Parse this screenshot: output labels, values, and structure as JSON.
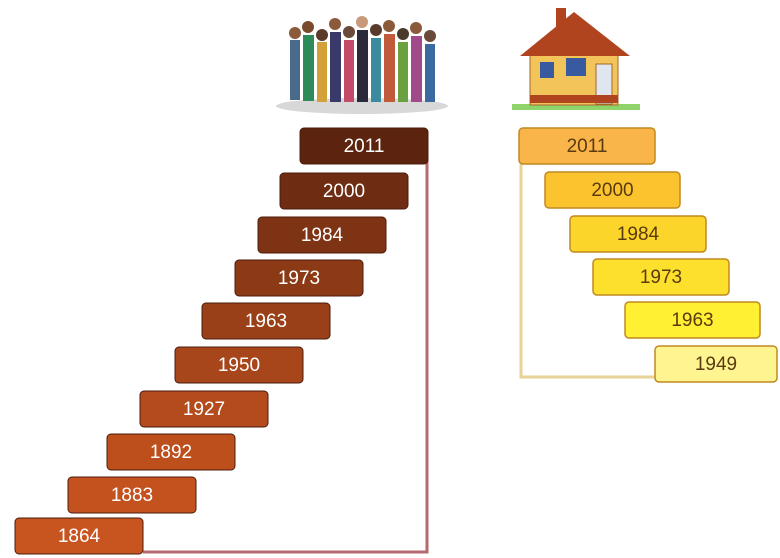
{
  "population": {
    "years": [
      "2011",
      "2000",
      "1984",
      "1973",
      "1963",
      "1950",
      "1927",
      "1892",
      "1883",
      "1864"
    ]
  },
  "housing": {
    "years": [
      "2011",
      "2000",
      "1984",
      "1973",
      "1963",
      "1949"
    ]
  }
}
